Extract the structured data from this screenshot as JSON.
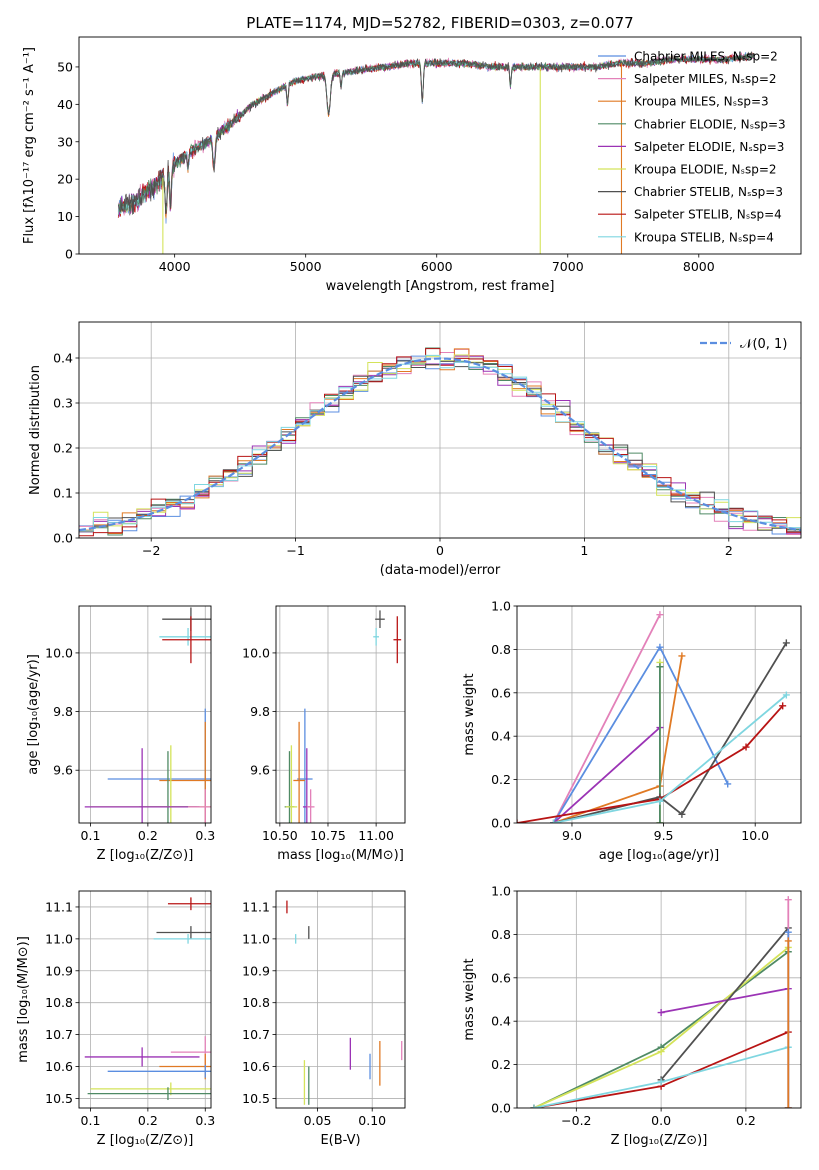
{
  "colors": {
    "chabrier_miles": "#5b8ee0",
    "salpeter_miles": "#e381b9",
    "kroupa_miles": "#e07a24",
    "chabrier_elodie": "#4f8a65",
    "salpeter_elodie": "#9b33b5",
    "kroupa_elodie": "#d4e35a",
    "chabrier_stelib": "#505050",
    "salpeter_stelib": "#b81414",
    "kroupa_stelib": "#7fd6e0"
  },
  "chart_data": [
    {
      "id": "spectrum",
      "type": "line",
      "title": "PLATE=1174, MJD=52782, FIBERID=0303, z=0.077",
      "xlabel": "wavelength [Angstrom, rest frame]",
      "ylabel": "Flux [fλ10⁻¹⁷ erg cm⁻² s⁻¹ A⁻¹]",
      "xlim": [
        3270,
        8780
      ],
      "ylim": [
        0,
        58
      ],
      "xticks": [
        "4000",
        "5000",
        "6000",
        "7000",
        "8000"
      ],
      "yticks": [
        "0",
        "10",
        "20",
        "30",
        "40",
        "50"
      ],
      "legend_position": "upper right",
      "legend": [
        "Chabrier MILES, Nₛsp=2",
        "Salpeter MILES, Nₛsp=2",
        "Kroupa MILES, Nₛsp=3",
        "Chabrier ELODIE, Nₛsp=3",
        "Salpeter ELODIE, Nₛsp=3",
        "Kroupa ELODIE, Nₛsp=2",
        "Chabrier STELIB, Nₛsp=3",
        "Salpeter STELIB, Nₛsp=4",
        "Kroupa STELIB, Nₛsp=4"
      ],
      "continuum": [
        [
          3570,
          12
        ],
        [
          3700,
          14
        ],
        [
          3800,
          17
        ],
        [
          3900,
          20
        ],
        [
          4000,
          24
        ],
        [
          4100,
          27
        ],
        [
          4200,
          29
        ],
        [
          4300,
          31
        ],
        [
          4400,
          34
        ],
        [
          4500,
          37
        ],
        [
          4600,
          40
        ],
        [
          4700,
          42
        ],
        [
          4800,
          44
        ],
        [
          4900,
          46
        ],
        [
          5000,
          47
        ],
        [
          5200,
          48
        ],
        [
          5400,
          49
        ],
        [
          5600,
          50
        ],
        [
          5800,
          51
        ],
        [
          6000,
          51
        ],
        [
          6200,
          51
        ],
        [
          6400,
          50
        ],
        [
          6600,
          50
        ],
        [
          6800,
          50
        ],
        [
          7000,
          50
        ],
        [
          7200,
          50
        ],
        [
          7400,
          51
        ],
        [
          7600,
          51
        ],
        [
          7800,
          52
        ],
        [
          8000,
          52
        ],
        [
          8200,
          52
        ],
        [
          8420,
          53
        ]
      ],
      "dropouts": [
        [
          3910,
          "#d4e35a"
        ],
        [
          6790,
          "#d4e35a"
        ],
        [
          7410,
          "#e07a24"
        ]
      ]
    },
    {
      "id": "residuals",
      "type": "histogram",
      "xlabel": "(data-model)/error",
      "ylabel": "Normed distribution",
      "xlim": [
        -2.5,
        2.5
      ],
      "ylim": [
        0,
        0.48
      ],
      "xticks": [
        "−2",
        "−1",
        "0",
        "1",
        "2"
      ],
      "yticks": [
        "0.0",
        "0.1",
        "0.2",
        "0.3",
        "0.4"
      ],
      "bins": 50,
      "normal_label": "𝒩(0, 1)",
      "grid": true
    },
    {
      "id": "age_vs_Z",
      "type": "errorbar",
      "xlabel": "Z [log₁₀(Z/Z⊙)]",
      "ylabel": "age  [log₁₀(age/yr)]",
      "xlim": [
        0.08,
        0.31
      ],
      "ylim": [
        9.42,
        10.16
      ],
      "xticks": [
        "0.1",
        "0.2",
        "0.3"
      ],
      "yticks": [
        "9.6",
        "9.8",
        "10.0"
      ],
      "points": [
        {
          "c": "chabrier_stelib",
          "x": 0.275,
          "y": 10.115,
          "xerr": 0.05,
          "yerr": 0.04
        },
        {
          "c": "kroupa_stelib",
          "x": 0.27,
          "y": 10.055,
          "xerr": 0.05,
          "yerr": 0.03
        },
        {
          "c": "salpeter_stelib",
          "x": 0.275,
          "y": 10.045,
          "xerr": 0.05,
          "yerr": 0.08
        },
        {
          "c": "chabrier_miles",
          "x": 0.3,
          "y": 9.57,
          "xerr": 0.17,
          "yerr": 0.24
        },
        {
          "c": "kroupa_miles",
          "x": 0.3,
          "y": 9.565,
          "xerr": 0.08,
          "yerr": 0.2
        },
        {
          "c": "chabrier_elodie",
          "x": 0.235,
          "y": 9.475,
          "xerr": 0.05,
          "yerr": 0.19
        },
        {
          "c": "kroupa_elodie",
          "x": 0.24,
          "y": 9.475,
          "xerr": 0.14,
          "yerr": 0.21
        },
        {
          "c": "salpeter_elodie",
          "x": 0.19,
          "y": 9.475,
          "xerr": 0.1,
          "yerr": 0.2
        },
        {
          "c": "salpeter_miles",
          "x": 0.3,
          "y": 9.475,
          "xerr": 0.03,
          "yerr": 0.06
        }
      ]
    },
    {
      "id": "age_vs_mass",
      "type": "errorbar",
      "xlabel": "mass [log₁₀(M/M⊙)]",
      "ylabel": "",
      "xlim": [
        10.48,
        11.15
      ],
      "ylim": [
        9.42,
        10.16
      ],
      "xticks": [
        "10.50",
        "10.75",
        "11.00"
      ],
      "yticks": [
        "9.6",
        "9.8",
        "10.0"
      ],
      "points": [
        {
          "c": "chabrier_stelib",
          "x": 11.02,
          "y": 10.115,
          "xerr": 0.025,
          "yerr": 0.03
        },
        {
          "c": "kroupa_stelib",
          "x": 11.0,
          "y": 10.055,
          "xerr": 0.015,
          "yerr": 0.03
        },
        {
          "c": "salpeter_stelib",
          "x": 11.11,
          "y": 10.045,
          "xerr": 0.02,
          "yerr": 0.08
        },
        {
          "c": "chabrier_miles",
          "x": 10.63,
          "y": 9.57,
          "xerr": 0.04,
          "yerr": 0.24
        },
        {
          "c": "kroupa_miles",
          "x": 10.6,
          "y": 9.565,
          "xerr": 0.03,
          "yerr": 0.2
        },
        {
          "c": "chabrier_elodie",
          "x": 10.55,
          "y": 9.475,
          "xerr": 0.025,
          "yerr": 0.19
        },
        {
          "c": "kroupa_elodie",
          "x": 10.56,
          "y": 9.475,
          "xerr": 0.03,
          "yerr": 0.21
        },
        {
          "c": "salpeter_elodie",
          "x": 10.64,
          "y": 9.475,
          "xerr": 0.02,
          "yerr": 0.2
        },
        {
          "c": "salpeter_miles",
          "x": 10.66,
          "y": 9.475,
          "xerr": 0.02,
          "yerr": 0.06
        }
      ]
    },
    {
      "id": "weight_vs_age",
      "type": "line",
      "xlabel": "age  [log₁₀(age/yr)]",
      "ylabel": "mass weight",
      "xlim": [
        8.7,
        10.25
      ],
      "ylim": [
        0,
        1.0
      ],
      "xticks": [
        "9.0",
        "9.5",
        "10.0"
      ],
      "yticks": [
        "0.0",
        "0.2",
        "0.4",
        "0.6",
        "0.8",
        "1.0"
      ],
      "series": [
        {
          "c": "salpeter_miles",
          "x": [
            8.9,
            9.48
          ],
          "y": [
            0.0,
            0.96
          ]
        },
        {
          "c": "chabrier_miles",
          "x": [
            8.9,
            9.48,
            9.85
          ],
          "y": [
            0.0,
            0.81,
            0.18
          ]
        },
        {
          "c": "kroupa_miles",
          "x": [
            8.9,
            9.48,
            9.6
          ],
          "y": [
            0.0,
            0.17,
            0.77
          ]
        },
        {
          "c": "salpeter_elodie",
          "x": [
            8.9,
            9.48
          ],
          "y": [
            0.0,
            0.44
          ]
        },
        {
          "c": "kroupa_elodie",
          "x": [
            9.48,
            9.48
          ],
          "y": [
            0.0,
            0.74
          ]
        },
        {
          "c": "chabrier_elodie",
          "x": [
            9.48,
            9.48
          ],
          "y": [
            0.0,
            0.72
          ]
        },
        {
          "c": "chabrier_stelib",
          "x": [
            8.9,
            9.48,
            9.6,
            10.17
          ],
          "y": [
            0.0,
            0.12,
            0.04,
            0.83
          ]
        },
        {
          "c": "salpeter_stelib",
          "x": [
            8.7,
            9.48,
            9.95,
            10.15
          ],
          "y": [
            0.0,
            0.11,
            0.35,
            0.54
          ]
        },
        {
          "c": "kroupa_stelib",
          "x": [
            8.9,
            9.48,
            10.17
          ],
          "y": [
            0.0,
            0.1,
            0.59
          ]
        }
      ]
    },
    {
      "id": "mass_vs_Z",
      "type": "errorbar",
      "xlabel": "Z [log₁₀(Z/Z⊙)]",
      "ylabel": "mass [log₁₀(M/M⊙)]",
      "xlim": [
        0.08,
        0.31
      ],
      "ylim": [
        10.47,
        11.15
      ],
      "xticks": [
        "0.1",
        "0.2",
        "0.3"
      ],
      "yticks": [
        "10.5",
        "10.6",
        "10.7",
        "10.8",
        "10.9",
        "11.0",
        "11.1"
      ],
      "points": [
        {
          "c": "salpeter_stelib",
          "x": 0.275,
          "y": 11.11,
          "xerr": 0.04,
          "yerr": 0.02
        },
        {
          "c": "chabrier_stelib",
          "x": 0.275,
          "y": 11.02,
          "xerr": 0.06,
          "yerr": 0.02
        },
        {
          "c": "kroupa_stelib",
          "x": 0.27,
          "y": 11.0,
          "xerr": 0.06,
          "yerr": 0.015
        },
        {
          "c": "salpeter_miles",
          "x": 0.3,
          "y": 10.645,
          "xerr": 0.06,
          "yerr": 0.05
        },
        {
          "c": "salpeter_elodie",
          "x": 0.19,
          "y": 10.63,
          "xerr": 0.1,
          "yerr": 0.03
        },
        {
          "c": "kroupa_miles",
          "x": 0.3,
          "y": 10.6,
          "xerr": 0.08,
          "yerr": 0.04
        },
        {
          "c": "chabrier_miles",
          "x": 0.3,
          "y": 10.585,
          "xerr": 0.17,
          "yerr": 0.02
        },
        {
          "c": "kroupa_elodie",
          "x": 0.24,
          "y": 10.53,
          "xerr": 0.14,
          "yerr": 0.02
        },
        {
          "c": "chabrier_elodie",
          "x": 0.235,
          "y": 10.515,
          "xerr": 0.14,
          "yerr": 0.02
        }
      ]
    },
    {
      "id": "mass_vs_ebv",
      "type": "errorbar",
      "xlabel": "E(B-V)",
      "ylabel": "",
      "xlim": [
        0.012,
        0.13
      ],
      "ylim": [
        10.47,
        11.15
      ],
      "xticks": [
        "0.05",
        "0.10"
      ],
      "yticks": [
        "10.5",
        "10.6",
        "10.7",
        "10.8",
        "10.9",
        "11.0",
        "11.1"
      ],
      "points": [
        {
          "c": "salpeter_stelib",
          "x": 0.022,
          "y": 11.1,
          "xerr": 0.0,
          "yerr": 0.02
        },
        {
          "c": "kroupa_stelib",
          "x": 0.03,
          "y": 11.0,
          "xerr": 0.0,
          "yerr": 0.015
        },
        {
          "c": "chabrier_stelib",
          "x": 0.042,
          "y": 11.02,
          "xerr": 0.0,
          "yerr": 0.02
        },
        {
          "c": "salpeter_elodie",
          "x": 0.08,
          "y": 10.64,
          "xerr": 0.0,
          "yerr": 0.05
        },
        {
          "c": "chabrier_miles",
          "x": 0.098,
          "y": 10.6,
          "xerr": 0.0,
          "yerr": 0.04
        },
        {
          "c": "kroupa_miles",
          "x": 0.107,
          "y": 10.61,
          "xerr": 0.0,
          "yerr": 0.07
        },
        {
          "c": "salpeter_miles",
          "x": 0.127,
          "y": 10.65,
          "xerr": 0.0,
          "yerr": 0.03
        },
        {
          "c": "kroupa_elodie",
          "x": 0.038,
          "y": 10.55,
          "xerr": 0.0,
          "yerr": 0.07
        },
        {
          "c": "chabrier_elodie",
          "x": 0.042,
          "y": 10.54,
          "xerr": 0.0,
          "yerr": 0.06
        }
      ]
    },
    {
      "id": "weight_vs_Z",
      "type": "line",
      "xlabel": "Z [log₁₀(Z/Z⊙)]",
      "ylabel": "mass weight",
      "xlim": [
        -0.34,
        0.33
      ],
      "ylim": [
        0,
        1.0
      ],
      "xticks": [
        "−0.2",
        "0.0",
        "0.2"
      ],
      "yticks": [
        "0.0",
        "0.2",
        "0.4",
        "0.6",
        "0.8",
        "1.0"
      ],
      "series": [
        {
          "c": "chabrier_elodie",
          "x": [
            -0.3,
            0.0,
            0.3
          ],
          "y": [
            0.0,
            0.28,
            0.72
          ]
        },
        {
          "c": "kroupa_elodie",
          "x": [
            -0.3,
            0.0,
            0.3
          ],
          "y": [
            0.0,
            0.26,
            0.74
          ]
        },
        {
          "c": "salpeter_elodie",
          "x": [
            0.0,
            0.3
          ],
          "y": [
            0.44,
            0.55
          ]
        },
        {
          "c": "chabrier_stelib",
          "x": [
            0.0,
            0.3
          ],
          "y": [
            0.13,
            0.83
          ]
        },
        {
          "c": "salpeter_stelib",
          "x": [
            -0.3,
            0.0,
            0.3
          ],
          "y": [
            0.0,
            0.1,
            0.35
          ]
        },
        {
          "c": "kroupa_stelib",
          "x": [
            -0.3,
            0.0,
            0.3
          ],
          "y": [
            0.0,
            0.12,
            0.28
          ]
        },
        {
          "c": "salpeter_miles",
          "x": [
            0.3,
            0.3
          ],
          "y": [
            0.0,
            0.96
          ]
        },
        {
          "c": "chabrier_miles",
          "x": [
            0.3,
            0.3
          ],
          "y": [
            0.0,
            0.81
          ]
        },
        {
          "c": "kroupa_miles",
          "x": [
            0.3,
            0.3
          ],
          "y": [
            0.0,
            0.77
          ]
        }
      ]
    }
  ]
}
